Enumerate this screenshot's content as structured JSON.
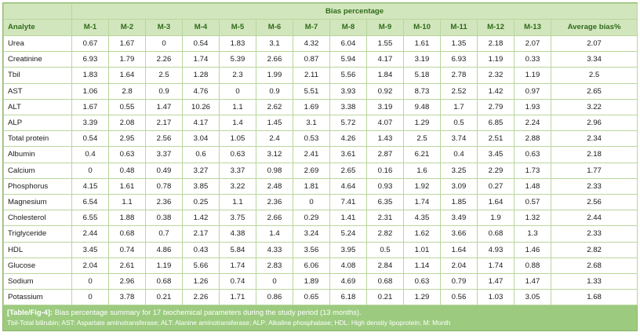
{
  "table": {
    "group_header": "Bias percentage",
    "columns": [
      "Analyte",
      "M-1",
      "M-2",
      "M-3",
      "M-4",
      "M-5",
      "M-6",
      "M-7",
      "M-8",
      "M-9",
      "M-10",
      "M-11",
      "M-12",
      "M-13",
      "Average bias%"
    ],
    "rows": [
      [
        "Urea",
        "0.67",
        "1.67",
        "0",
        "0.54",
        "1.83",
        "3.1",
        "4.32",
        "6.04",
        "1.55",
        "1.61",
        "1.35",
        "2.18",
        "2.07",
        "2.07"
      ],
      [
        "Creatinine",
        "6.93",
        "1.79",
        "2.26",
        "1.74",
        "5.39",
        "2.66",
        "0.87",
        "5.94",
        "4.17",
        "3.19",
        "6.93",
        "1.19",
        "0.33",
        "3.34"
      ],
      [
        "Tbil",
        "1.83",
        "1.64",
        "2.5",
        "1.28",
        "2.3",
        "1.99",
        "2.11",
        "5.56",
        "1.84",
        "5.18",
        "2.78",
        "2.32",
        "1.19",
        "2.5"
      ],
      [
        "AST",
        "1.06",
        "2.8",
        "0.9",
        "4.76",
        "0",
        "0.9",
        "5.51",
        "3.93",
        "0.92",
        "8.73",
        "2.52",
        "1.42",
        "0.97",
        "2.65"
      ],
      [
        "ALT",
        "1.67",
        "0.55",
        "1.47",
        "10.26",
        "1.1",
        "2.62",
        "1.69",
        "3.38",
        "3.19",
        "9.48",
        "1.7",
        "2.79",
        "1.93",
        "3.22"
      ],
      [
        "ALP",
        "3.39",
        "2.08",
        "2.17",
        "4.17",
        "1.4",
        "1.45",
        "3.1",
        "5.72",
        "4.07",
        "1.29",
        "0.5",
        "6.85",
        "2.24",
        "2.96"
      ],
      [
        "Total protein",
        "0.54",
        "2.95",
        "2.56",
        "3.04",
        "1.05",
        "2.4",
        "0.53",
        "4.26",
        "1.43",
        "2.5",
        "3.74",
        "2.51",
        "2.88",
        "2.34"
      ],
      [
        "Albumin",
        "0.4",
        "0.63",
        "3.37",
        "0.6",
        "0.63",
        "3.12",
        "2.41",
        "3.61",
        "2.87",
        "6.21",
        "0.4",
        "3.45",
        "0.63",
        "2.18"
      ],
      [
        "Calcium",
        "0",
        "0.48",
        "0.49",
        "3.27",
        "3.37",
        "0.98",
        "2.69",
        "2.65",
        "0.16",
        "1.6",
        "3.25",
        "2.29",
        "1.73",
        "1.77"
      ],
      [
        "Phosphorus",
        "4.15",
        "1.61",
        "0.78",
        "3.85",
        "3.22",
        "2.48",
        "1.81",
        "4.64",
        "0.93",
        "1.92",
        "3.09",
        "0.27",
        "1.48",
        "2.33"
      ],
      [
        "Magnesium",
        "6.54",
        "1.1",
        "2.36",
        "0.25",
        "1.1",
        "2.36",
        "0",
        "7.41",
        "6.35",
        "1.74",
        "1.85",
        "1.64",
        "0.57",
        "2.56"
      ],
      [
        "Cholesterol",
        "6.55",
        "1.88",
        "0.38",
        "1.42",
        "3.75",
        "2.66",
        "0.29",
        "1.41",
        "2.31",
        "4.35",
        "3.49",
        "1.9",
        "1.32",
        "2.44"
      ],
      [
        "Triglyceride",
        "2.44",
        "0.68",
        "0.7",
        "2.17",
        "4.38",
        "1.4",
        "3.24",
        "5.24",
        "2.82",
        "1.62",
        "3.66",
        "0.68",
        "1.3",
        "2.33"
      ],
      [
        "HDL",
        "3.45",
        "0.74",
        "4.86",
        "0.43",
        "5.84",
        "4.33",
        "3.56",
        "3.95",
        "0.5",
        "1.01",
        "1.64",
        "4.93",
        "1.46",
        "2.82"
      ],
      [
        "Glucose",
        "2.04",
        "2.61",
        "1.19",
        "5.66",
        "1.74",
        "2.83",
        "6.06",
        "4.08",
        "2.84",
        "1.14",
        "2.04",
        "1.74",
        "0.88",
        "2.68"
      ],
      [
        "Sodium",
        "0",
        "2.96",
        "0.68",
        "1.26",
        "0.74",
        "0",
        "1.89",
        "4.69",
        "0.68",
        "0.63",
        "0.79",
        "1.47",
        "1.47",
        "1.33"
      ],
      [
        "Potassium",
        "0",
        "3.78",
        "0.21",
        "2.26",
        "1.71",
        "0.86",
        "0.65",
        "6.18",
        "0.21",
        "1.29",
        "0.56",
        "1.03",
        "3.05",
        "1.68"
      ]
    ]
  },
  "caption": {
    "tag": "[Table/Fig-4]:",
    "text": "Bias percentage summary for 17 biochemical parameters during the study period (13 months).",
    "abbreviations": "Tbil-Total bilirubin; AST: Aspartate aminotransferase; ALT: Alanine aminotransferase; ALP: Alkaline phosphatase; HDL: High density lipoprotein; M: Month"
  },
  "colors": {
    "header_bg": "#d2e6bd",
    "header_text": "#2f6b1a",
    "caption_bg": "#9ccb7f",
    "grid": "#b9d69c"
  }
}
